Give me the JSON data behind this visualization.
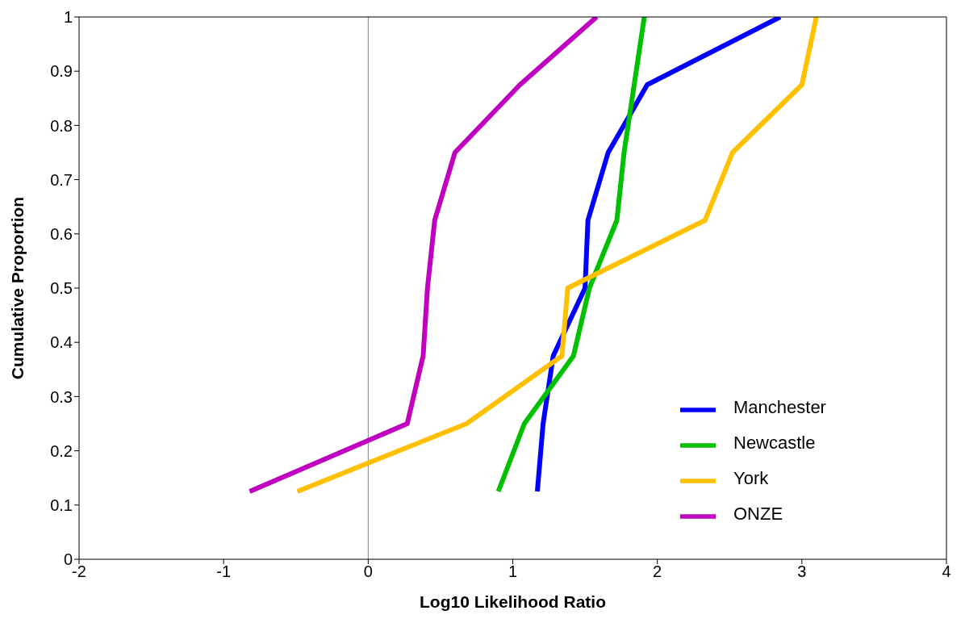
{
  "chart_data": {
    "type": "line",
    "xlabel": "Log10 Likelihood Ratio",
    "ylabel": "Cumulative Proportion",
    "xlim": [
      -2,
      4
    ],
    "xticks": [
      -2,
      -1,
      0,
      1,
      2,
      3,
      4
    ],
    "ylim": [
      0,
      1
    ],
    "yticks": [
      0,
      0.1,
      0.2,
      0.3,
      0.4,
      0.5,
      0.6,
      0.7,
      0.8,
      0.9,
      1
    ],
    "grid": false,
    "legend": "bottom right",
    "marker": "none",
    "line_style": "solid",
    "ref_lines": [
      {
        "axis": "x",
        "value": 0,
        "color": "#808080"
      }
    ],
    "series": [
      {
        "name": "Manchester",
        "color": "#0000ff",
        "x": [
          1.17,
          1.21,
          1.28,
          1.5,
          1.52,
          1.66,
          1.93,
          2.85
        ],
        "values": [
          0.125,
          0.25,
          0.375,
          0.5,
          0.625,
          0.75,
          0.875,
          1
        ]
      },
      {
        "name": "Newcastle",
        "color": "#00c000",
        "x": [
          0.9,
          1.08,
          1.42,
          1.53,
          1.72,
          1.77,
          1.84,
          1.91
        ],
        "values": [
          0.125,
          0.25,
          0.375,
          0.5,
          0.625,
          0.75,
          0.875,
          1
        ]
      },
      {
        "name": "York",
        "color": "#ffc000",
        "x": [
          -0.49,
          0.68,
          1.34,
          1.38,
          2.33,
          2.52,
          3.0,
          3.1
        ],
        "values": [
          0.125,
          0.25,
          0.375,
          0.5,
          0.625,
          0.75,
          0.875,
          1
        ]
      },
      {
        "name": "ONZE",
        "color": "#c000c0",
        "x": [
          -0.82,
          0.27,
          0.38,
          0.41,
          0.46,
          0.6,
          1.05,
          1.58
        ],
        "values": [
          0.125,
          0.25,
          0.375,
          0.5,
          0.625,
          0.75,
          0.875,
          1
        ]
      }
    ]
  }
}
